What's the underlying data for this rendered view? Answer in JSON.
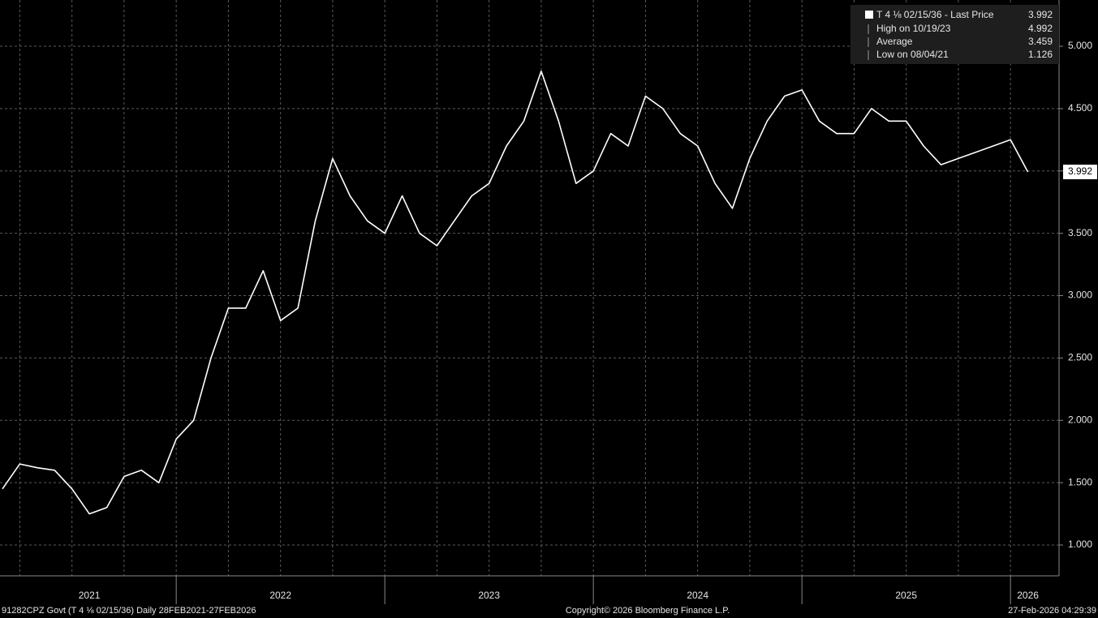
{
  "chart_data": {
    "type": "line",
    "footer": {
      "left": "91282CPZ Govt (T 4 ⅛ 02/15/36) Daily 28FEB2021-27FEB2026",
      "center": "Copyright© 2026 Bloomberg Finance L.P.",
      "right": "27-Feb-2026 04:29:39"
    },
    "x": [
      "2021-03",
      "2021-04",
      "2021-05",
      "2021-06",
      "2021-07",
      "2021-08",
      "2021-09",
      "2021-10",
      "2021-11",
      "2021-12",
      "2022-01",
      "2022-02",
      "2022-03",
      "2022-04",
      "2022-05",
      "2022-06",
      "2022-07",
      "2022-08",
      "2022-09",
      "2022-10",
      "2022-11",
      "2022-12",
      "2023-01",
      "2023-02",
      "2023-03",
      "2023-04",
      "2023-05",
      "2023-06",
      "2023-07",
      "2023-08",
      "2023-09",
      "2023-10",
      "2023-11",
      "2023-12",
      "2024-01",
      "2024-02",
      "2024-03",
      "2024-04",
      "2024-05",
      "2024-06",
      "2024-07",
      "2024-08",
      "2024-09",
      "2024-10",
      "2024-11",
      "2024-12",
      "2025-01",
      "2025-02",
      "2025-03",
      "2025-04",
      "2025-05",
      "2025-06",
      "2025-07",
      "2025-08",
      "2025-09",
      "2025-10",
      "2025-11",
      "2025-12",
      "2026-01",
      "2026-02"
    ],
    "series": [
      {
        "name": "T 4 ⅛ 02/15/36 - Last Price",
        "color": "#ffffff",
        "values": [
          1.45,
          1.65,
          1.62,
          1.6,
          1.45,
          1.25,
          1.3,
          1.55,
          1.6,
          1.5,
          1.85,
          2.0,
          2.5,
          2.9,
          2.9,
          3.2,
          2.8,
          2.9,
          3.6,
          4.1,
          3.8,
          3.6,
          3.5,
          3.8,
          3.5,
          3.4,
          3.6,
          3.8,
          3.9,
          4.2,
          4.4,
          4.8,
          4.4,
          3.9,
          4.0,
          4.3,
          4.2,
          4.6,
          4.5,
          4.3,
          4.2,
          3.9,
          3.7,
          4.1,
          4.4,
          4.6,
          4.65,
          4.4,
          4.3,
          4.3,
          4.5,
          4.4,
          4.4,
          4.2,
          4.05,
          4.1,
          4.15,
          4.2,
          4.25,
          3.992
        ]
      }
    ],
    "stats": [
      {
        "label": "High on 10/19/23",
        "value": 4.992
      },
      {
        "label": "Average",
        "value": 3.459
      },
      {
        "label": "Low on 08/04/21",
        "value": 1.126
      }
    ],
    "xlim": [
      "2021-03",
      "2026-03"
    ],
    "xticks": [
      {
        "value": "2021-08",
        "label": "2021"
      },
      {
        "value": "2022-07",
        "label": "2022"
      },
      {
        "value": "2023-07",
        "label": "2023"
      },
      {
        "value": "2024-07",
        "label": "2024"
      },
      {
        "value": "2025-07",
        "label": "2025"
      },
      {
        "value": "2026-02",
        "label": "2026"
      }
    ],
    "ylim": [
      0.753,
      5.371
    ],
    "yticks": [
      {
        "value": 1,
        "label": "1.000"
      },
      {
        "value": 1.5,
        "label": "1.500"
      },
      {
        "value": 2,
        "label": "2.000"
      },
      {
        "value": 2.5,
        "label": "2.500"
      },
      {
        "value": 3,
        "label": "3.000"
      },
      {
        "value": 3.5,
        "label": "3.500"
      },
      {
        "value": 4,
        "label": "4.000"
      },
      {
        "value": 4.5,
        "label": "4.500"
      },
      {
        "value": 5,
        "label": "5.000"
      }
    ],
    "grid": true
  }
}
